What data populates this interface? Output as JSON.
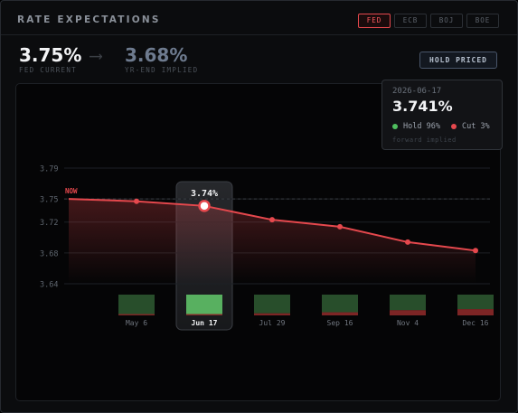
{
  "header": {
    "title": "RATE EXPECTATIONS",
    "tabs": [
      {
        "label": "FED",
        "active": true
      },
      {
        "label": "ECB",
        "active": false
      },
      {
        "label": "BOJ",
        "active": false
      },
      {
        "label": "BOE",
        "active": false
      }
    ]
  },
  "summary": {
    "current_value": "3.75%",
    "current_label": "FED CURRENT",
    "arrow_icon": "arrow-right-icon",
    "implied_value": "3.68%",
    "implied_label": "YR-END IMPLIED",
    "hold_button": "HOLD PRICED"
  },
  "tooltip": {
    "date": "2026-06-17",
    "value": "3.741%",
    "hold": "Hold 96%",
    "cut": "Cut 3%",
    "note": "forward implied"
  },
  "chart_data": {
    "type": "line",
    "now_label": "NOW",
    "y_ticks": [
      "3.79",
      "3.75",
      "3.72",
      "3.68",
      "3.64"
    ],
    "ylim": [
      3.64,
      3.79
    ],
    "reference_line": 3.75,
    "selected_index": 1,
    "selected_label": "3.74%",
    "meetings": [
      {
        "label": "May 6",
        "rate": 3.747,
        "hold": 0.97,
        "cut": 0.03
      },
      {
        "label": "Jun 17",
        "rate": 3.741,
        "hold": 0.96,
        "cut": 0.03
      },
      {
        "label": "Jul 29",
        "rate": 3.723,
        "hold": 0.9,
        "cut": 0.1
      },
      {
        "label": "Sep 16",
        "rate": 3.714,
        "hold": 0.85,
        "cut": 0.15
      },
      {
        "label": "Nov 4",
        "rate": 3.694,
        "hold": 0.75,
        "cut": 0.25
      },
      {
        "label": "Dec 16",
        "rate": 3.683,
        "hold": 0.7,
        "cut": 0.3
      }
    ],
    "colors": {
      "line": "#e5484d",
      "hold": "#3f7e45",
      "hold_selected": "#58b060",
      "cut": "#9b2d2d"
    }
  }
}
